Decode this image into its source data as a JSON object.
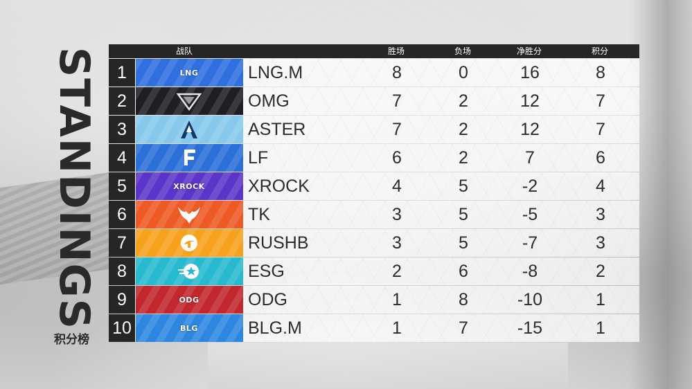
{
  "title": "STANDINGS",
  "subtitle": "积分榜",
  "headers": {
    "team": "战队",
    "wins": "胜场",
    "losses": "负场",
    "net": "净胜分",
    "points": "积分"
  },
  "rows": [
    {
      "rank": "1",
      "team": "LNG.M",
      "wins": "8",
      "losses": "0",
      "net": "16",
      "points": "8",
      "logo_icon": "lng-logo-icon",
      "logo_text": "LNG",
      "logo_color": "#2f6fe0"
    },
    {
      "rank": "2",
      "team": "OMG",
      "wins": "7",
      "losses": "2",
      "net": "12",
      "points": "7",
      "logo_icon": "omg-logo-icon",
      "logo_text": "",
      "logo_color": "#1e1e24"
    },
    {
      "rank": "3",
      "team": "ASTER",
      "wins": "7",
      "losses": "2",
      "net": "12",
      "points": "7",
      "logo_icon": "aster-logo-icon",
      "logo_text": "",
      "logo_color": "#86c9ec"
    },
    {
      "rank": "4",
      "team": "LF",
      "wins": "6",
      "losses": "2",
      "net": "7",
      "points": "6",
      "logo_icon": "lf-logo-icon",
      "logo_text": "",
      "logo_color": "#2b6fd8"
    },
    {
      "rank": "5",
      "team": "XROCK",
      "wins": "4",
      "losses": "5",
      "net": "-2",
      "points": "4",
      "logo_icon": "xrock-logo-icon",
      "logo_text": "XROCK",
      "logo_color": "#5b35c9"
    },
    {
      "rank": "6",
      "team": "TK",
      "wins": "3",
      "losses": "5",
      "net": "-5",
      "points": "3",
      "logo_icon": "tk-logo-icon",
      "logo_text": "",
      "logo_color": "#ee5a24"
    },
    {
      "rank": "7",
      "team": "RUSHB",
      "wins": "3",
      "losses": "5",
      "net": "-7",
      "points": "3",
      "logo_icon": "rushb-logo-icon",
      "logo_text": "",
      "logo_color": "#f6a21c"
    },
    {
      "rank": "8",
      "team": "ESG",
      "wins": "2",
      "losses": "6",
      "net": "-8",
      "points": "2",
      "logo_icon": "esg-logo-icon",
      "logo_text": "",
      "logo_color": "#27b9cf"
    },
    {
      "rank": "9",
      "team": "ODG",
      "wins": "1",
      "losses": "8",
      "net": "-10",
      "points": "1",
      "logo_icon": "odg-logo-icon",
      "logo_text": "ODG",
      "logo_color": "#c2272d"
    },
    {
      "rank": "10",
      "team": "BLG.M",
      "wins": "1",
      "losses": "7",
      "net": "-15",
      "points": "1",
      "logo_icon": "blg-logo-icon",
      "logo_text": "BLG",
      "logo_color": "#2d87e0"
    }
  ]
}
